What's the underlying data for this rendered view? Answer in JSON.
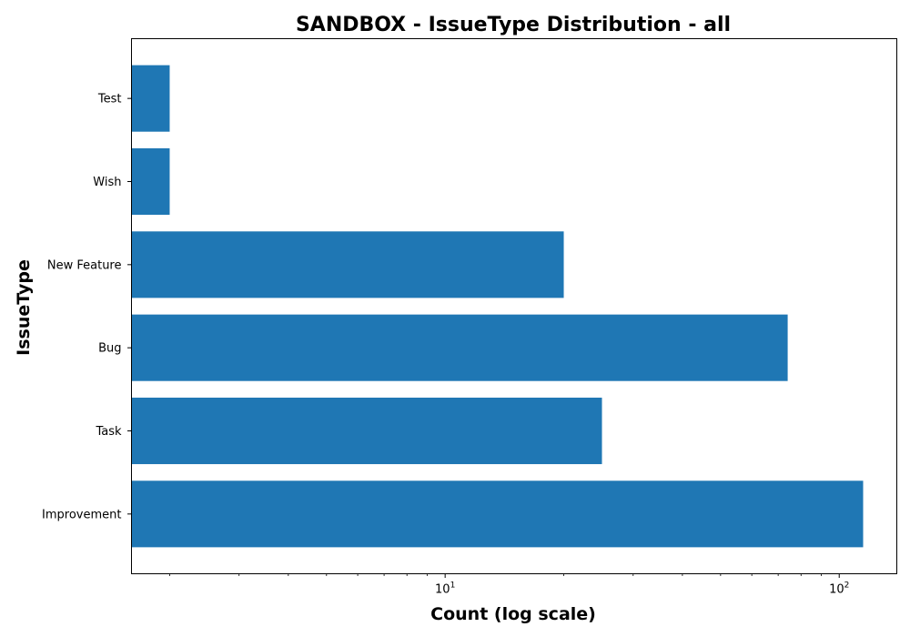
{
  "chart_data": {
    "type": "bar",
    "orientation": "horizontal",
    "title": "SANDBOX - IssueType Distribution - all",
    "xlabel": "Count (log scale)",
    "ylabel": "IssueType",
    "x_scale": "log",
    "xlim": [
      1.6,
      140
    ],
    "categories": [
      "Improvement",
      "Task",
      "Bug",
      "New Feature",
      "Wish",
      "Test"
    ],
    "values": [
      115,
      25,
      74,
      20,
      2,
      2
    ],
    "x_major_ticks": [
      {
        "base": "10",
        "exp": "1",
        "value": 10
      },
      {
        "base": "10",
        "exp": "2",
        "value": 100
      }
    ],
    "bar_color": "#1f77b4",
    "grid": false,
    "legend": "none"
  }
}
